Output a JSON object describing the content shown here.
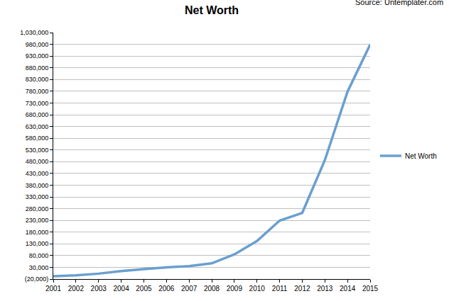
{
  "chart_data": {
    "type": "line",
    "title": "Net Worth",
    "annotations": [
      "Source: Untemplater.com"
    ],
    "x": [
      2001,
      2002,
      2003,
      2004,
      2005,
      2006,
      2007,
      2008,
      2009,
      2010,
      2011,
      2012,
      2013,
      2014,
      2015
    ],
    "series": [
      {
        "name": "Net Worth",
        "color": "#6a9fd0",
        "values": [
          -8000,
          -4000,
          3000,
          14000,
          22000,
          30000,
          35000,
          47000,
          85000,
          142000,
          229000,
          262000,
          487000,
          778000,
          979000
        ]
      }
    ],
    "xlim": [
      2001,
      2015
    ],
    "xticks": [
      2001,
      2002,
      2003,
      2004,
      2005,
      2006,
      2007,
      2008,
      2009,
      2010,
      2011,
      2012,
      2013,
      2014,
      2015
    ],
    "ylim": [
      -20000,
      1030000
    ],
    "yticks": [
      {
        "value": -20000,
        "label": "(20,000)"
      },
      {
        "value": 30000,
        "label": "30,000"
      },
      {
        "value": 80000,
        "label": "80,000"
      },
      {
        "value": 130000,
        "label": "130,000"
      },
      {
        "value": 180000,
        "label": "180,000"
      },
      {
        "value": 230000,
        "label": "230,000"
      },
      {
        "value": 280000,
        "label": "280,000"
      },
      {
        "value": 330000,
        "label": "330,000"
      },
      {
        "value": 380000,
        "label": "380,000"
      },
      {
        "value": 430000,
        "label": "430,000"
      },
      {
        "value": 480000,
        "label": "480,000"
      },
      {
        "value": 530000,
        "label": "530,000"
      },
      {
        "value": 580000,
        "label": "580,000"
      },
      {
        "value": 630000,
        "label": "630,000"
      },
      {
        "value": 680000,
        "label": "680,000"
      },
      {
        "value": 730000,
        "label": "730,000"
      },
      {
        "value": 780000,
        "label": "780,000"
      },
      {
        "value": 830000,
        "label": "830,000"
      },
      {
        "value": 880000,
        "label": "880,000"
      },
      {
        "value": 930000,
        "label": "930,000"
      },
      {
        "value": 980000,
        "label": "980,000"
      },
      {
        "value": 1030000,
        "label": "1,030,000"
      }
    ],
    "grid": true,
    "legend": "right"
  }
}
